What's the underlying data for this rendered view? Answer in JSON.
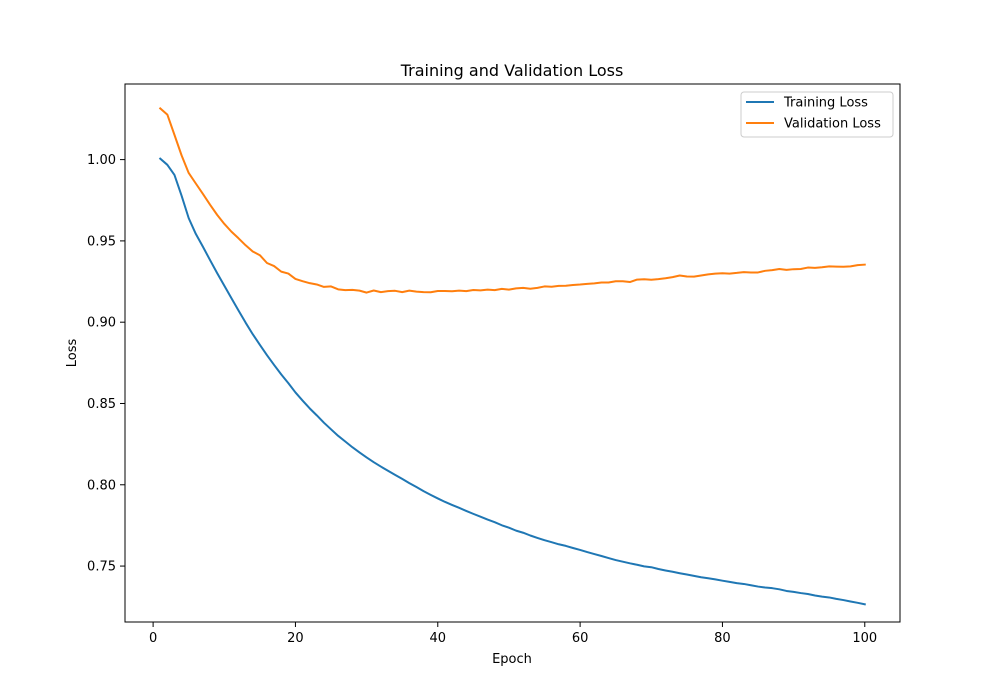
{
  "chart_data": {
    "type": "line",
    "title": "Training and Validation Loss",
    "xlabel": "Epoch",
    "ylabel": "Loss",
    "xlim": [
      -3.95,
      104.95
    ],
    "ylim": [
      0.7156,
      1.0465
    ],
    "x_ticks": [
      0,
      20,
      40,
      60,
      80,
      100
    ],
    "y_ticks": [
      0.75,
      0.8,
      0.85,
      0.9,
      0.95,
      1.0
    ],
    "x_tick_labels": [
      "0",
      "20",
      "40",
      "60",
      "80",
      "100"
    ],
    "y_tick_labels": [
      "0.75",
      "0.80",
      "0.85",
      "0.90",
      "0.95",
      "1.00"
    ],
    "grid": false,
    "legend_position": "top-right",
    "x": [
      1,
      2,
      3,
      4,
      5,
      6,
      7,
      8,
      9,
      10,
      11,
      12,
      13,
      14,
      15,
      16,
      17,
      18,
      19,
      20,
      21,
      22,
      23,
      24,
      25,
      26,
      27,
      28,
      29,
      30,
      31,
      32,
      33,
      34,
      35,
      36,
      37,
      38,
      39,
      40,
      41,
      42,
      43,
      44,
      45,
      46,
      47,
      48,
      49,
      50,
      51,
      52,
      53,
      54,
      55,
      56,
      57,
      58,
      59,
      60,
      61,
      62,
      63,
      64,
      65,
      66,
      67,
      68,
      69,
      70,
      71,
      72,
      73,
      74,
      75,
      76,
      77,
      78,
      79,
      80,
      81,
      82,
      83,
      84,
      85,
      86,
      87,
      88,
      89,
      90,
      91,
      92,
      93,
      94,
      95,
      96,
      97,
      98,
      99,
      100
    ],
    "series": [
      {
        "name": "Training Loss",
        "color": "#1f77b4",
        "values": [
          1.0006,
          0.9968,
          0.9906,
          0.9778,
          0.964,
          0.9543,
          0.9464,
          0.9382,
          0.9302,
          0.9225,
          0.9148,
          0.9072,
          0.8997,
          0.8926,
          0.8861,
          0.8797,
          0.8737,
          0.8679,
          0.8625,
          0.8568,
          0.8518,
          0.847,
          0.8427,
          0.8382,
          0.8341,
          0.8301,
          0.8266,
          0.8231,
          0.8199,
          0.8168,
          0.8139,
          0.8112,
          0.8086,
          0.8061,
          0.8036,
          0.801,
          0.7986,
          0.7961,
          0.7938,
          0.7916,
          0.7895,
          0.7876,
          0.7858,
          0.7839,
          0.7821,
          0.7804,
          0.7786,
          0.777,
          0.7751,
          0.7736,
          0.7718,
          0.7705,
          0.7688,
          0.7673,
          0.7659,
          0.7647,
          0.7634,
          0.7624,
          0.7611,
          0.7599,
          0.7586,
          0.7574,
          0.7562,
          0.7549,
          0.7537,
          0.7527,
          0.7517,
          0.7508,
          0.7498,
          0.7493,
          0.7482,
          0.7473,
          0.7465,
          0.7456,
          0.7448,
          0.744,
          0.7431,
          0.7425,
          0.7418,
          0.741,
          0.7403,
          0.7395,
          0.739,
          0.7382,
          0.7374,
          0.7368,
          0.7364,
          0.7357,
          0.7347,
          0.7341,
          0.7334,
          0.7328,
          0.7319,
          0.7312,
          0.7307,
          0.7298,
          0.7291,
          0.7282,
          0.7274,
          0.7265
        ]
      },
      {
        "name": "Validation Loss",
        "color": "#ff7f0e",
        "values": [
          1.0315,
          1.0277,
          1.0152,
          1.0026,
          0.9918,
          0.9853,
          0.9789,
          0.9723,
          0.966,
          0.9605,
          0.9557,
          0.9516,
          0.9473,
          0.9435,
          0.9412,
          0.9364,
          0.9345,
          0.9311,
          0.9299,
          0.9266,
          0.9252,
          0.924,
          0.9232,
          0.9217,
          0.922,
          0.9202,
          0.9197,
          0.9199,
          0.9194,
          0.9182,
          0.9195,
          0.9185,
          0.9191,
          0.9193,
          0.9185,
          0.9194,
          0.9188,
          0.9185,
          0.9184,
          0.9192,
          0.9192,
          0.919,
          0.9194,
          0.9191,
          0.9198,
          0.9196,
          0.92,
          0.9197,
          0.9205,
          0.92,
          0.9208,
          0.9211,
          0.9206,
          0.9211,
          0.922,
          0.9218,
          0.9223,
          0.9224,
          0.9229,
          0.9232,
          0.9236,
          0.9239,
          0.9244,
          0.9244,
          0.9252,
          0.9252,
          0.9247,
          0.9262,
          0.9264,
          0.9261,
          0.9265,
          0.927,
          0.9277,
          0.9287,
          0.9281,
          0.928,
          0.9287,
          0.9294,
          0.9299,
          0.9301,
          0.9299,
          0.9303,
          0.9308,
          0.9306,
          0.9306,
          0.9316,
          0.932,
          0.9327,
          0.9322,
          0.9326,
          0.9327,
          0.9336,
          0.9334,
          0.9338,
          0.9343,
          0.9342,
          0.9341,
          0.9343,
          0.9351,
          0.9354
        ]
      }
    ]
  }
}
